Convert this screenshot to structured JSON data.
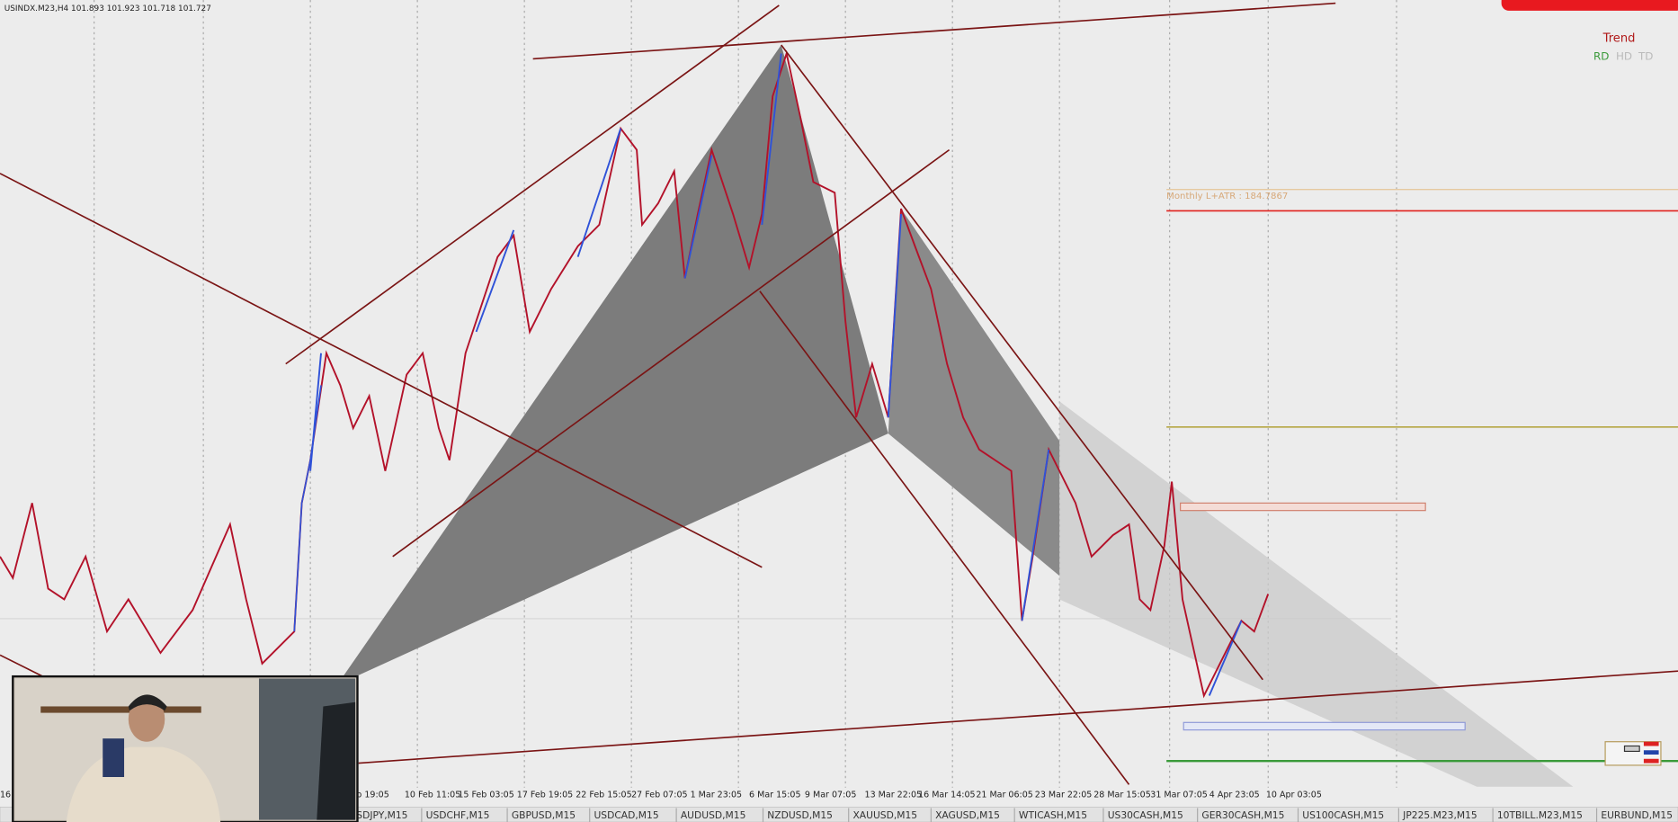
{
  "header": {
    "symbol_info": "USINDX.M23,H4 101.893 101.923 101.718 101.727"
  },
  "indicator": {
    "title": "Trend",
    "labels": [
      "RD",
      "HD",
      "TD"
    ]
  },
  "levels": {
    "monthly_label": "Monthly L+ATR : 184.7867"
  },
  "time_axis": [
    "16",
    "b 19:05",
    "10 Feb 11:05",
    "15 Feb 03:05",
    "17 Feb 19:05",
    "22 Feb 15:05",
    "27 Feb 07:05",
    "1 Mar 23:05",
    "6 Mar 15:05",
    "9 Mar 07:05",
    "13 Mar 22:05",
    "16 Mar 14:05",
    "21 Mar 06:05",
    "23 Mar 22:05",
    "28 Mar 15:05",
    "31 Mar 07:05",
    "4 Apr 23:05",
    "10 Apr 03:05"
  ],
  "tabs": [
    "SDJPY,M15",
    "USDCHF,M15",
    "GBPUSD,M15",
    "USDCAD,M15",
    "AUDUSD,M15",
    "NZDUSD,M15",
    "XAUUSD,M15",
    "XAGUSD,M15",
    "WTICASH,M15",
    "US30CASH,M15",
    "GER30CASH,M15",
    "US100CASH,M15",
    "JP225.M23,M15",
    "10TBILL.M23,M15",
    "EURBUND,M15"
  ]
}
